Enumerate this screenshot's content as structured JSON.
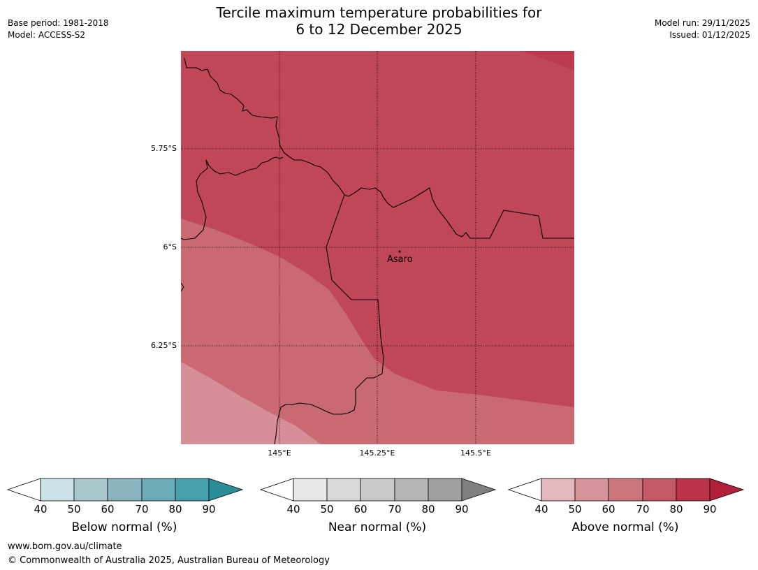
{
  "header": {
    "title_line1": "Tercile maximum temperature probabilities for",
    "title_line2": "6 to 12 December 2025",
    "base_period": "Base period: 1981-2018",
    "model": "Model: ACCESS-S2",
    "model_run": "Model run: 29/11/2025",
    "issued": "Issued: 01/12/2025"
  },
  "map": {
    "lat_labels": [
      "5.75°S",
      "6°S",
      "6.25°S"
    ],
    "lon_labels": [
      "145°E",
      "145.25°E",
      "145.5°E"
    ],
    "place": "Asaro",
    "fill_colors": {
      "above_80": "#c04757",
      "above_70": "#c96a73",
      "above_60": "#d68f97",
      "above_90": "#bb3a4d"
    }
  },
  "colorbars": [
    {
      "label": "Below normal (%)",
      "ticks": [
        "40",
        "50",
        "60",
        "70",
        "80",
        "90"
      ],
      "colors": [
        "#cbe1e6",
        "#a8c7cc",
        "#8ab4bf",
        "#6cacb9",
        "#47a0ad"
      ],
      "end_color": "#2a8d99"
    },
    {
      "label": "Near normal (%)",
      "ticks": [
        "40",
        "50",
        "60",
        "70",
        "80",
        "90"
      ],
      "colors": [
        "#e8e8e8",
        "#d9d9d9",
        "#c9c9c9",
        "#b5b5b5",
        "#a0a0a0"
      ],
      "end_color": "#808080"
    },
    {
      "label": "Above normal (%)",
      "ticks": [
        "40",
        "50",
        "60",
        "70",
        "80",
        "90"
      ],
      "colors": [
        "#e3b7bc",
        "#d6939a",
        "#cc747b",
        "#c45a67",
        "#bb3449"
      ],
      "end_color": "#b0203a"
    }
  ],
  "footer": {
    "url": "www.bom.gov.au/climate",
    "copyright": "© Commonwealth of Australia 2025, Australian Bureau of Meteorology"
  }
}
